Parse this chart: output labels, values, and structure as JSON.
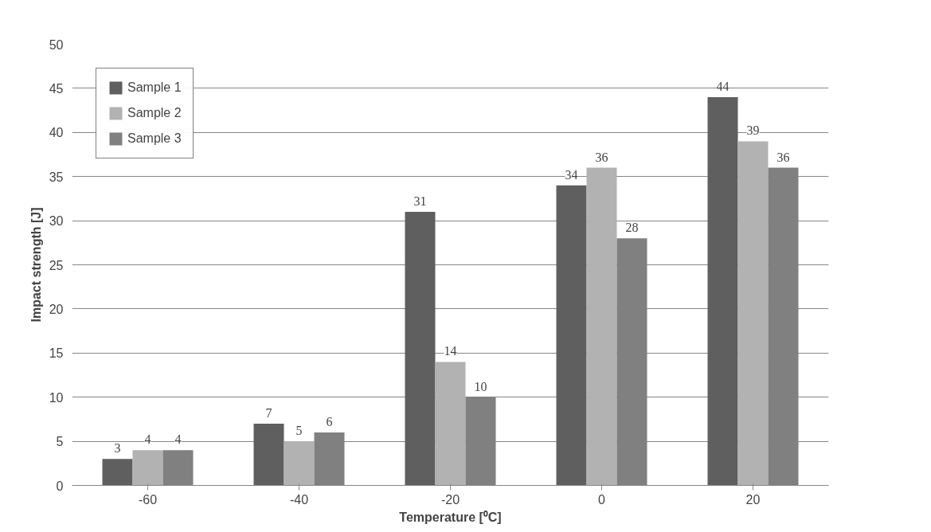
{
  "chart_data": {
    "type": "bar",
    "xlabel": "Temperature [⁰C]",
    "ylabel": "Impact strength [J]",
    "categories": [
      "-60",
      "-40",
      "-20",
      "0",
      "20"
    ],
    "series": [
      {
        "name": "Sample 1",
        "color": "#5f5f5f",
        "values": [
          3,
          7,
          31,
          34,
          44
        ]
      },
      {
        "name": "Sample 2",
        "color": "#b2b2b2",
        "values": [
          4,
          5,
          14,
          36,
          39
        ]
      },
      {
        "name": "Sample 3",
        "color": "#808080",
        "values": [
          4,
          6,
          10,
          28,
          36
        ]
      }
    ],
    "ylim": [
      0,
      50
    ],
    "yticks": [
      0,
      5,
      10,
      15,
      20,
      25,
      30,
      35,
      40,
      45,
      50
    ],
    "grid": "y",
    "legend": "top left",
    "data_labels": true
  }
}
